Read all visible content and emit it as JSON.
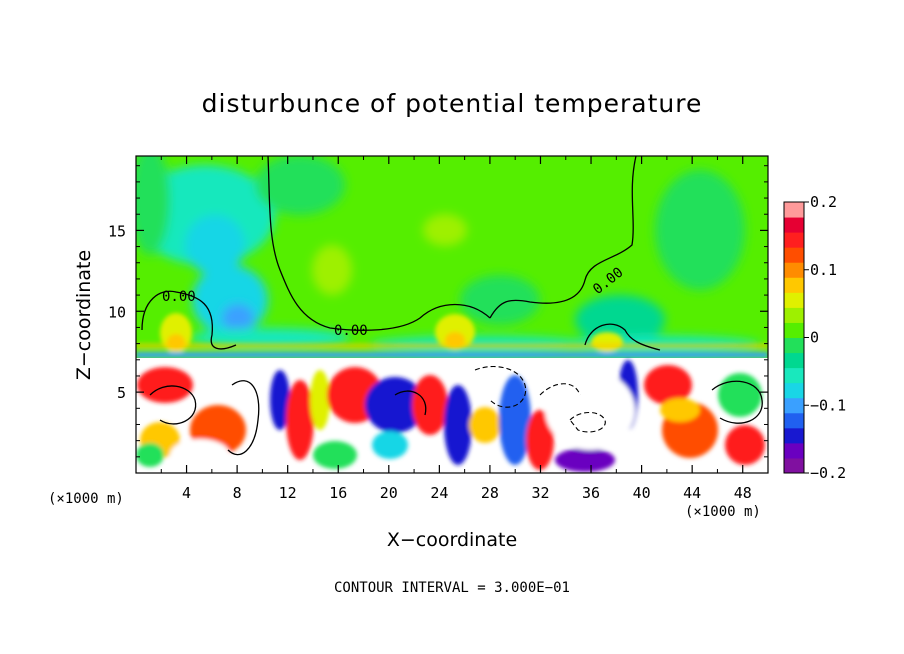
{
  "chart_data": {
    "type": "heatmap",
    "title": "disturbunce of potential temperature",
    "xlabel": "X−coordinate",
    "ylabel": "Z−coordinate",
    "x_unit": "(×1000 m)",
    "y_unit": "(×1000 m)",
    "xlim": [
      0,
      50
    ],
    "ylim": [
      0,
      19.6
    ],
    "x_ticks": [
      "4",
      "8",
      "12",
      "16",
      "20",
      "24",
      "28",
      "32",
      "36",
      "40",
      "44",
      "48"
    ],
    "y_ticks": [
      "5",
      "10",
      "15"
    ],
    "colorbar": {
      "vmin": -0.2,
      "vmax": 0.2,
      "tick_labels": [
        "0.2",
        "0.1",
        "0",
        "−0.1",
        "−0.2"
      ],
      "colors": [
        "#8010a0",
        "#6a00c0",
        "#1818d0",
        "#2060f0",
        "#3aa0ff",
        "#19d6e6",
        "#19e8bd",
        "#00d890",
        "#22e05a",
        "#55ee00",
        "#9ef000",
        "#e0f000",
        "#ffc800",
        "#ff8c00",
        "#ff4e00",
        "#ff1f1f",
        "#e60033",
        "#ff9a9a"
      ]
    },
    "contour_labels": [
      "0.00",
      "0.00",
      "0.00"
    ],
    "contour_interval_text": "CONTOUR INTERVAL = 3.000E−01",
    "background_value": 0.02
  }
}
